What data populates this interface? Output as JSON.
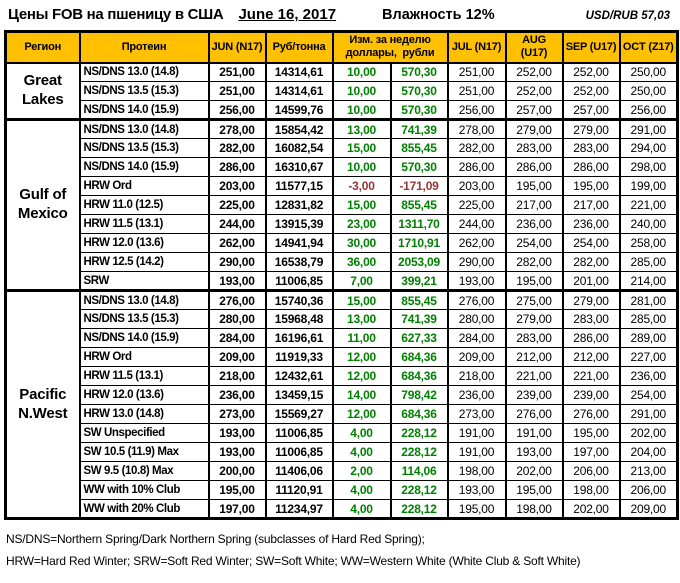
{
  "title": {
    "main": "Цены FOB на пшеницу в США",
    "date": "June 16, 2017",
    "humidity": "Влажность 12%",
    "fx": "USD/RUB  57,03"
  },
  "colors": {
    "header_bg": "#FFC000",
    "positive_change": "#008000",
    "negative_change": "#963634"
  },
  "table": {
    "headers": {
      "region": "Регион",
      "protein": "Протеин",
      "jun": "JUN (N17)",
      "rub_per_ton": "Руб/тонна",
      "chg_line1": "Изм. за неделю",
      "chg_line2": "доллары,  рубли",
      "jul": "JUL (N17)",
      "aug": "AUG (U17)",
      "sep": "SEP (U17)",
      "oct": "OCT (Z17)"
    },
    "regions": [
      {
        "name": "Great Lakes",
        "rows": [
          {
            "protein": "NS/DNS 13.0 (14.8)",
            "jun": "251,00",
            "rub": "14314,61",
            "chg_usd": "10,00",
            "chg_rub": "570,30",
            "negative": false,
            "jul": "251,00",
            "aug": "252,00",
            "sep": "252,00",
            "oct": "250,00"
          },
          {
            "protein": "NS/DNS 13.5 (15.3)",
            "jun": "251,00",
            "rub": "14314,61",
            "chg_usd": "10,00",
            "chg_rub": "570,30",
            "negative": false,
            "jul": "251,00",
            "aug": "252,00",
            "sep": "252,00",
            "oct": "250,00"
          },
          {
            "protein": "NS/DNS 14.0 (15.9)",
            "jun": "256,00",
            "rub": "14599,76",
            "chg_usd": "10,00",
            "chg_rub": "570,30",
            "negative": false,
            "jul": "256,00",
            "aug": "257,00",
            "sep": "257,00",
            "oct": "256,00"
          }
        ]
      },
      {
        "name": "Gulf of Mexico",
        "rows": [
          {
            "protein": "NS/DNS 13.0 (14.8)",
            "jun": "278,00",
            "rub": "15854,42",
            "chg_usd": "13,00",
            "chg_rub": "741,39",
            "negative": false,
            "jul": "278,00",
            "aug": "279,00",
            "sep": "279,00",
            "oct": "291,00"
          },
          {
            "protein": "NS/DNS 13.5 (15.3)",
            "jun": "282,00",
            "rub": "16082,54",
            "chg_usd": "15,00",
            "chg_rub": "855,45",
            "negative": false,
            "jul": "282,00",
            "aug": "283,00",
            "sep": "283,00",
            "oct": "294,00"
          },
          {
            "protein": "NS/DNS 14.0 (15.9)",
            "jun": "286,00",
            "rub": "16310,67",
            "chg_usd": "10,00",
            "chg_rub": "570,30",
            "negative": false,
            "jul": "286,00",
            "aug": "286,00",
            "sep": "286,00",
            "oct": "298,00"
          },
          {
            "protein": "HRW Ord",
            "jun": "203,00",
            "rub": "11577,15",
            "chg_usd": "-3,00",
            "chg_rub": "-171,09",
            "negative": true,
            "jul": "203,00",
            "aug": "195,00",
            "sep": "195,00",
            "oct": "199,00"
          },
          {
            "protein": "HRW 11.0 (12.5)",
            "jun": "225,00",
            "rub": "12831,82",
            "chg_usd": "15,00",
            "chg_rub": "855,45",
            "negative": false,
            "jul": "225,00",
            "aug": "217,00",
            "sep": "217,00",
            "oct": "221,00"
          },
          {
            "protein": "HRW 11.5 (13.1)",
            "jun": "244,00",
            "rub": "13915,39",
            "chg_usd": "23,00",
            "chg_rub": "1311,70",
            "negative": false,
            "jul": "244,00",
            "aug": "236,00",
            "sep": "236,00",
            "oct": "240,00"
          },
          {
            "protein": "HRW 12.0 (13.6)",
            "jun": "262,00",
            "rub": "14941,94",
            "chg_usd": "30,00",
            "chg_rub": "1710,91",
            "negative": false,
            "jul": "262,00",
            "aug": "254,00",
            "sep": "254,00",
            "oct": "258,00"
          },
          {
            "protein": "HRW 12.5 (14.2)",
            "jun": "290,00",
            "rub": "16538,79",
            "chg_usd": "36,00",
            "chg_rub": "2053,09",
            "negative": false,
            "jul": "290,00",
            "aug": "282,00",
            "sep": "282,00",
            "oct": "285,00"
          },
          {
            "protein": "SRW",
            "jun": "193,00",
            "rub": "11006,85",
            "chg_usd": "7,00",
            "chg_rub": "399,21",
            "negative": false,
            "jul": "193,00",
            "aug": "195,00",
            "sep": "201,00",
            "oct": "214,00"
          }
        ]
      },
      {
        "name": "Pacific N.West",
        "rows": [
          {
            "protein": "NS/DNS 13.0 (14.8)",
            "jun": "276,00",
            "rub": "15740,36",
            "chg_usd": "15,00",
            "chg_rub": "855,45",
            "negative": false,
            "jul": "276,00",
            "aug": "275,00",
            "sep": "279,00",
            "oct": "281,00"
          },
          {
            "protein": "NS/DNS 13.5 (15.3)",
            "jun": "280,00",
            "rub": "15968,48",
            "chg_usd": "13,00",
            "chg_rub": "741,39",
            "negative": false,
            "jul": "280,00",
            "aug": "279,00",
            "sep": "283,00",
            "oct": "285,00"
          },
          {
            "protein": "NS/DNS 14.0 (15.9)",
            "jun": "284,00",
            "rub": "16196,61",
            "chg_usd": "11,00",
            "chg_rub": "627,33",
            "negative": false,
            "jul": "284,00",
            "aug": "283,00",
            "sep": "286,00",
            "oct": "289,00"
          },
          {
            "protein": "HRW Ord",
            "jun": "209,00",
            "rub": "11919,33",
            "chg_usd": "12,00",
            "chg_rub": "684,36",
            "negative": false,
            "jul": "209,00",
            "aug": "212,00",
            "sep": "212,00",
            "oct": "227,00"
          },
          {
            "protein": "HRW 11.5 (13.1)",
            "jun": "218,00",
            "rub": "12432,61",
            "chg_usd": "12,00",
            "chg_rub": "684,36",
            "negative": false,
            "jul": "218,00",
            "aug": "221,00",
            "sep": "221,00",
            "oct": "236,00"
          },
          {
            "protein": "HRW 12.0 (13.6)",
            "jun": "236,00",
            "rub": "13459,15",
            "chg_usd": "14,00",
            "chg_rub": "798,42",
            "negative": false,
            "jul": "236,00",
            "aug": "239,00",
            "sep": "239,00",
            "oct": "254,00"
          },
          {
            "protein": "HRW 13.0 (14.8)",
            "jun": "273,00",
            "rub": "15569,27",
            "chg_usd": "12,00",
            "chg_rub": "684,36",
            "negative": false,
            "jul": "273,00",
            "aug": "276,00",
            "sep": "276,00",
            "oct": "291,00"
          },
          {
            "protein": "SW Unspecified",
            "jun": "193,00",
            "rub": "11006,85",
            "chg_usd": "4,00",
            "chg_rub": "228,12",
            "negative": false,
            "jul": "191,00",
            "aug": "191,00",
            "sep": "195,00",
            "oct": "202,00"
          },
          {
            "protein": "SW 10.5 (11.9) Max",
            "jun": "193,00",
            "rub": "11006,85",
            "chg_usd": "4,00",
            "chg_rub": "228,12",
            "negative": false,
            "jul": "191,00",
            "aug": "193,00",
            "sep": "197,00",
            "oct": "204,00"
          },
          {
            "protein": "SW 9.5 (10.8) Max",
            "jun": "200,00",
            "rub": "11406,06",
            "chg_usd": "2,00",
            "chg_rub": "114,06",
            "negative": false,
            "jul": "198,00",
            "aug": "202,00",
            "sep": "206,00",
            "oct": "213,00"
          },
          {
            "protein": "WW with 10% Club",
            "jun": "195,00",
            "rub": "11120,91",
            "chg_usd": "4,00",
            "chg_rub": "228,12",
            "negative": false,
            "jul": "193,00",
            "aug": "195,00",
            "sep": "198,00",
            "oct": "206,00"
          },
          {
            "protein": "WW with 20% Club",
            "jun": "197,00",
            "rub": "11234,97",
            "chg_usd": "4,00",
            "chg_rub": "228,12",
            "negative": false,
            "jul": "195,00",
            "aug": "198,00",
            "sep": "202,00",
            "oct": "209,00"
          }
        ]
      }
    ]
  },
  "footnotes": [
    "NS/DNS=Northern Spring/Dark Northern Spring (subclasses of Hard Red Spring);",
    "HRW=Hard Red Winter; SRW=Soft Red Winter; SW=Soft White; WW=Western White (White Club & Soft White)"
  ]
}
